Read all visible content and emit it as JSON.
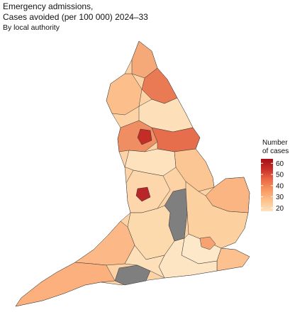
{
  "map": {
    "title": [
      "Emergency admissions,",
      "Cases avoided (per 100 000) 2024–33"
    ],
    "subtitle": "By local authority",
    "legend": {
      "title": [
        "Number",
        "of cases"
      ],
      "range": [
        17,
        64
      ],
      "ticks": [
        20,
        30,
        40,
        50,
        60
      ],
      "colors": [
        "#fde2bd",
        "#fcc28e",
        "#f99a63",
        "#ec6a45",
        "#c9302a",
        "#a50f15"
      ]
    },
    "no_data_color": "#7f7f7f"
  }
}
